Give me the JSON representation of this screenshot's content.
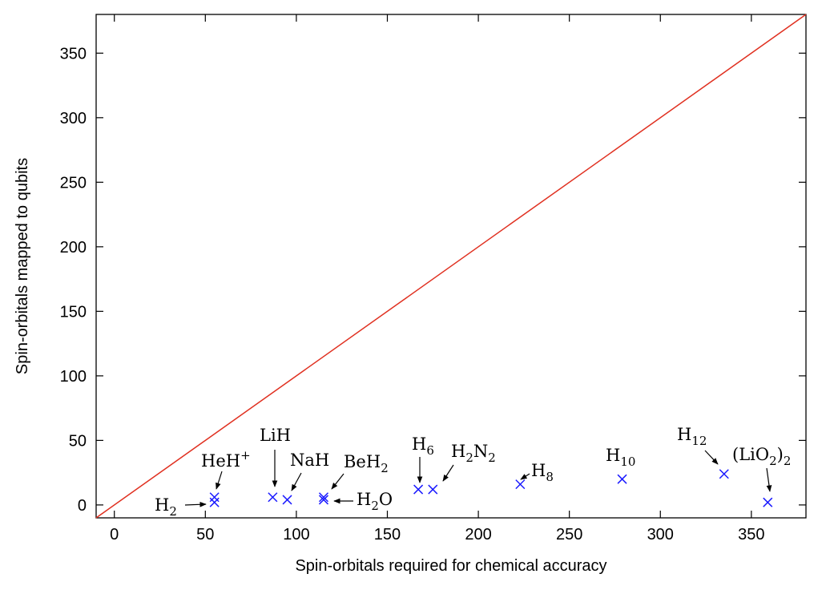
{
  "chart_data": {
    "type": "scatter",
    "xlabel": "Spin-orbitals required for chemical accuracy",
    "ylabel": "Spin-orbitals mapped to qubits",
    "xlim": [
      -10,
      380
    ],
    "ylim": [
      -10,
      380
    ],
    "xticks": [
      0,
      50,
      100,
      150,
      200,
      250,
      300,
      350
    ],
    "yticks": [
      0,
      50,
      100,
      150,
      200,
      250,
      300,
      350
    ],
    "grid": false,
    "reference_line": {
      "label": "",
      "x": [
        -10,
        380
      ],
      "y": [
        -10,
        380
      ],
      "color": "#e03020"
    },
    "series": [
      {
        "marker": "x",
        "color": "#1a1aff",
        "points": [
          {
            "x": 55,
            "y": 2,
            "label": "H2"
          },
          {
            "x": 55,
            "y": 6,
            "label": "HeH+"
          },
          {
            "x": 87,
            "y": 6,
            "label": "LiH"
          },
          {
            "x": 95,
            "y": 4,
            "label": "NaH"
          },
          {
            "x": 115,
            "y": 6,
            "label": "BeH2"
          },
          {
            "x": 115,
            "y": 4,
            "label": "H2O"
          },
          {
            "x": 167,
            "y": 12,
            "label": "H6"
          },
          {
            "x": 175,
            "y": 12,
            "label": "H2N2"
          },
          {
            "x": 223,
            "y": 16,
            "label": "H8"
          },
          {
            "x": 279,
            "y": 20,
            "label": "H10"
          },
          {
            "x": 335,
            "y": 24,
            "label": "H12"
          },
          {
            "x": 359,
            "y": 2,
            "label": "(LiO2)2"
          }
        ]
      }
    ],
    "annotations": [
      {
        "name": "H2",
        "parts": [
          [
            "H",
            ""
          ],
          [
            "2",
            "sub"
          ]
        ]
      },
      {
        "name": "HeH+",
        "parts": [
          [
            "HeH",
            ""
          ],
          [
            "+",
            "sup"
          ]
        ]
      },
      {
        "name": "LiH",
        "parts": [
          [
            "LiH",
            ""
          ]
        ]
      },
      {
        "name": "NaH",
        "parts": [
          [
            "NaH",
            ""
          ]
        ]
      },
      {
        "name": "BeH2",
        "parts": [
          [
            "BeH",
            ""
          ],
          [
            "2",
            "sub"
          ]
        ]
      },
      {
        "name": "H2O",
        "parts": [
          [
            "H",
            ""
          ],
          [
            "2",
            "sub"
          ],
          [
            "O",
            ""
          ]
        ]
      },
      {
        "name": "H6",
        "parts": [
          [
            "H",
            ""
          ],
          [
            "6",
            "sub"
          ]
        ]
      },
      {
        "name": "H2N2",
        "parts": [
          [
            "H",
            ""
          ],
          [
            "2",
            "sub"
          ],
          [
            "N",
            ""
          ],
          [
            "2",
            "sub"
          ]
        ]
      },
      {
        "name": "H8",
        "parts": [
          [
            "H",
            ""
          ],
          [
            "8",
            "sub"
          ]
        ]
      },
      {
        "name": "H10",
        "parts": [
          [
            "H",
            ""
          ],
          [
            "10",
            "sub"
          ]
        ]
      },
      {
        "name": "H12",
        "parts": [
          [
            "H",
            ""
          ],
          [
            "12",
            "sub"
          ]
        ]
      },
      {
        "name": "(LiO2)2",
        "parts": [
          [
            "(LiO",
            ""
          ],
          [
            "2",
            "sub"
          ],
          [
            ")",
            ""
          ],
          [
            "2",
            "sub"
          ]
        ]
      }
    ]
  }
}
